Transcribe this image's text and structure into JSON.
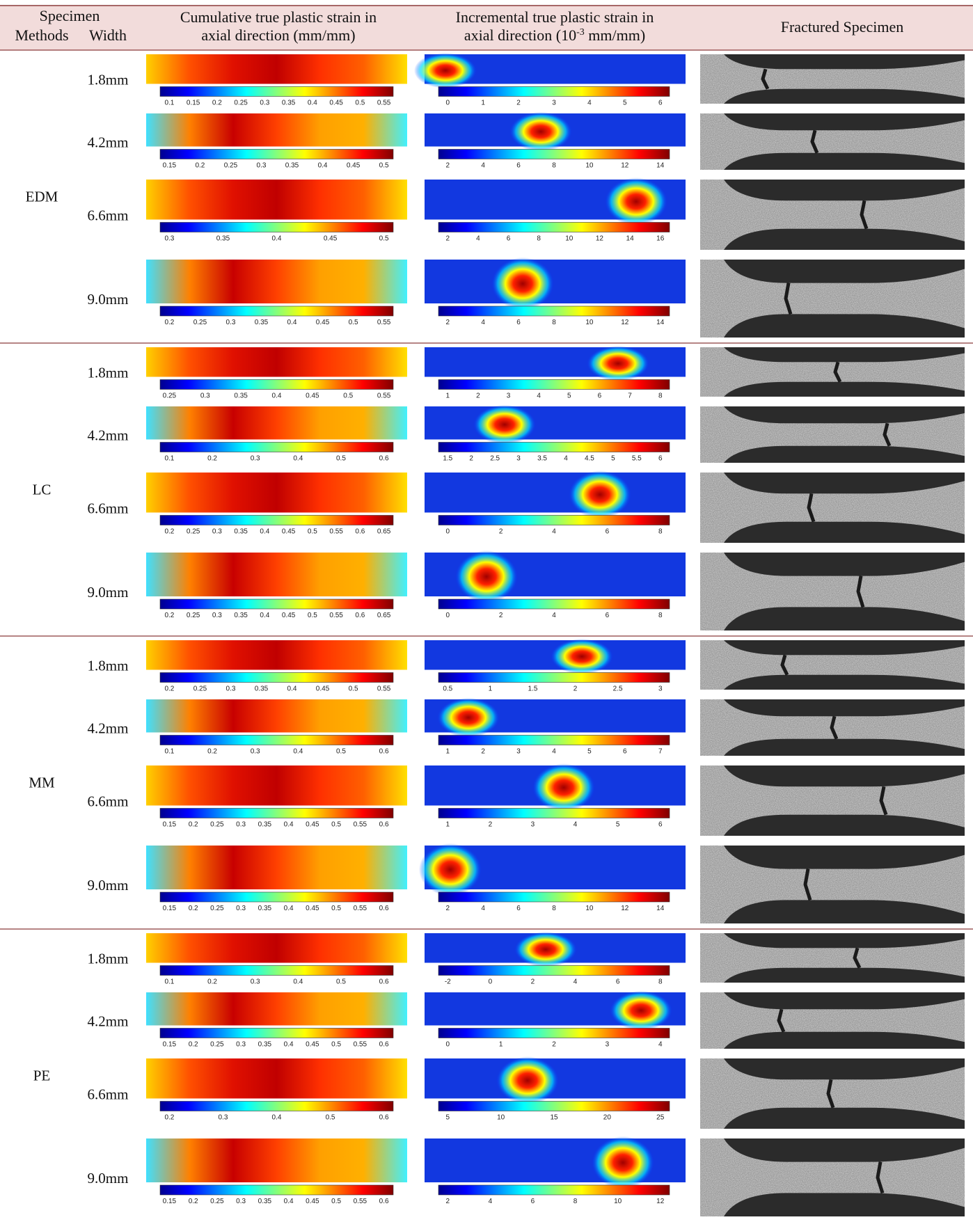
{
  "header": {
    "specimen": "Specimen",
    "methods": "Methods",
    "width": "Width",
    "cumulative": [
      "Cumulative true plastic strain in",
      "axial direction (mm/mm)"
    ],
    "incremental": {
      "line1": "Incremental true plastic strain in",
      "before": "axial direction (10",
      "superscript": "-3",
      "after": " mm/mm)"
    },
    "fractured": "Fractured Specimen"
  },
  "groups": [
    {
      "method": "EDM",
      "rows": [
        {
          "width": "1.8mm",
          "cumulative_ticks": [
            "0.1",
            "0.15",
            "0.2",
            "0.25",
            "0.3",
            "0.35",
            "0.4",
            "0.45",
            "0.5",
            "0.55"
          ],
          "incremental_ticks": [
            "0",
            "1",
            "2",
            "3",
            "4",
            "5",
            "6"
          ]
        },
        {
          "width": "4.2mm",
          "cumulative_ticks": [
            "0.15",
            "0.2",
            "0.25",
            "0.3",
            "0.35",
            "0.4",
            "0.45",
            "0.5"
          ],
          "incremental_ticks": [
            "2",
            "4",
            "6",
            "8",
            "10",
            "12",
            "14"
          ]
        },
        {
          "width": "6.6mm",
          "cumulative_ticks": [
            "0.3",
            "0.35",
            "0.4",
            "0.45",
            "0.5"
          ],
          "incremental_ticks": [
            "2",
            "4",
            "6",
            "8",
            "10",
            "12",
            "14",
            "16"
          ]
        },
        {
          "width": "9.0mm",
          "cumulative_ticks": [
            "0.2",
            "0.25",
            "0.3",
            "0.35",
            "0.4",
            "0.45",
            "0.5",
            "0.55"
          ],
          "incremental_ticks": [
            "2",
            "4",
            "6",
            "8",
            "10",
            "12",
            "14"
          ]
        }
      ]
    },
    {
      "method": "LC",
      "rows": [
        {
          "width": "1.8mm",
          "cumulative_ticks": [
            "0.25",
            "0.3",
            "0.35",
            "0.4",
            "0.45",
            "0.5",
            "0.55"
          ],
          "incremental_ticks": [
            "1",
            "2",
            "3",
            "4",
            "5",
            "6",
            "7",
            "8"
          ]
        },
        {
          "width": "4.2mm",
          "cumulative_ticks": [
            "0.1",
            "0.2",
            "0.3",
            "0.4",
            "0.5",
            "0.6"
          ],
          "incremental_ticks": [
            "1.5",
            "2",
            "2.5",
            "3",
            "3.5",
            "4",
            "4.5",
            "5",
            "5.5",
            "6"
          ]
        },
        {
          "width": "6.6mm",
          "cumulative_ticks": [
            "0.2",
            "0.25",
            "0.3",
            "0.35",
            "0.4",
            "0.45",
            "0.5",
            "0.55",
            "0.6",
            "0.65"
          ],
          "incremental_ticks": [
            "0",
            "2",
            "4",
            "6",
            "8"
          ]
        },
        {
          "width": "9.0mm",
          "cumulative_ticks": [
            "0.2",
            "0.25",
            "0.3",
            "0.35",
            "0.4",
            "0.45",
            "0.5",
            "0.55",
            "0.6",
            "0.65"
          ],
          "incremental_ticks": [
            "0",
            "2",
            "4",
            "6",
            "8"
          ]
        }
      ]
    },
    {
      "method": "MM",
      "rows": [
        {
          "width": "1.8mm",
          "cumulative_ticks": [
            "0.2",
            "0.25",
            "0.3",
            "0.35",
            "0.4",
            "0.45",
            "0.5",
            "0.55"
          ],
          "incremental_ticks": [
            "0.5",
            "1",
            "1.5",
            "2",
            "2.5",
            "3"
          ]
        },
        {
          "width": "4.2mm",
          "cumulative_ticks": [
            "0.1",
            "0.2",
            "0.3",
            "0.4",
            "0.5",
            "0.6"
          ],
          "incremental_ticks": [
            "1",
            "2",
            "3",
            "4",
            "5",
            "6",
            "7"
          ]
        },
        {
          "width": "6.6mm",
          "cumulative_ticks": [
            "0.15",
            "0.2",
            "0.25",
            "0.3",
            "0.35",
            "0.4",
            "0.45",
            "0.5",
            "0.55",
            "0.6"
          ],
          "incremental_ticks": [
            "1",
            "2",
            "3",
            "4",
            "5",
            "6"
          ]
        },
        {
          "width": "9.0mm",
          "cumulative_ticks": [
            "0.15",
            "0.2",
            "0.25",
            "0.3",
            "0.35",
            "0.4",
            "0.45",
            "0.5",
            "0.55",
            "0.6"
          ],
          "incremental_ticks": [
            "2",
            "4",
            "6",
            "8",
            "10",
            "12",
            "14"
          ]
        }
      ]
    },
    {
      "method": "PE",
      "rows": [
        {
          "width": "1.8mm",
          "cumulative_ticks": [
            "0.1",
            "0.2",
            "0.3",
            "0.4",
            "0.5",
            "0.6"
          ],
          "incremental_ticks": [
            "-2",
            "0",
            "2",
            "4",
            "6",
            "8"
          ]
        },
        {
          "width": "4.2mm",
          "cumulative_ticks": [
            "0.15",
            "0.2",
            "0.25",
            "0.3",
            "0.35",
            "0.4",
            "0.45",
            "0.5",
            "0.55",
            "0.6"
          ],
          "incremental_ticks": [
            "0",
            "1",
            "2",
            "3",
            "4"
          ]
        },
        {
          "width": "6.6mm",
          "cumulative_ticks": [
            "0.2",
            "0.3",
            "0.4",
            "0.5",
            "0.6"
          ],
          "incremental_ticks": [
            "5",
            "10",
            "15",
            "20",
            "25"
          ]
        },
        {
          "width": "9.0mm",
          "cumulative_ticks": [
            "0.15",
            "0.2",
            "0.25",
            "0.3",
            "0.35",
            "0.4",
            "0.45",
            "0.5",
            "0.55",
            "0.6"
          ],
          "incremental_ticks": [
            "2",
            "4",
            "6",
            "8",
            "10",
            "12"
          ]
        }
      ]
    }
  ]
}
